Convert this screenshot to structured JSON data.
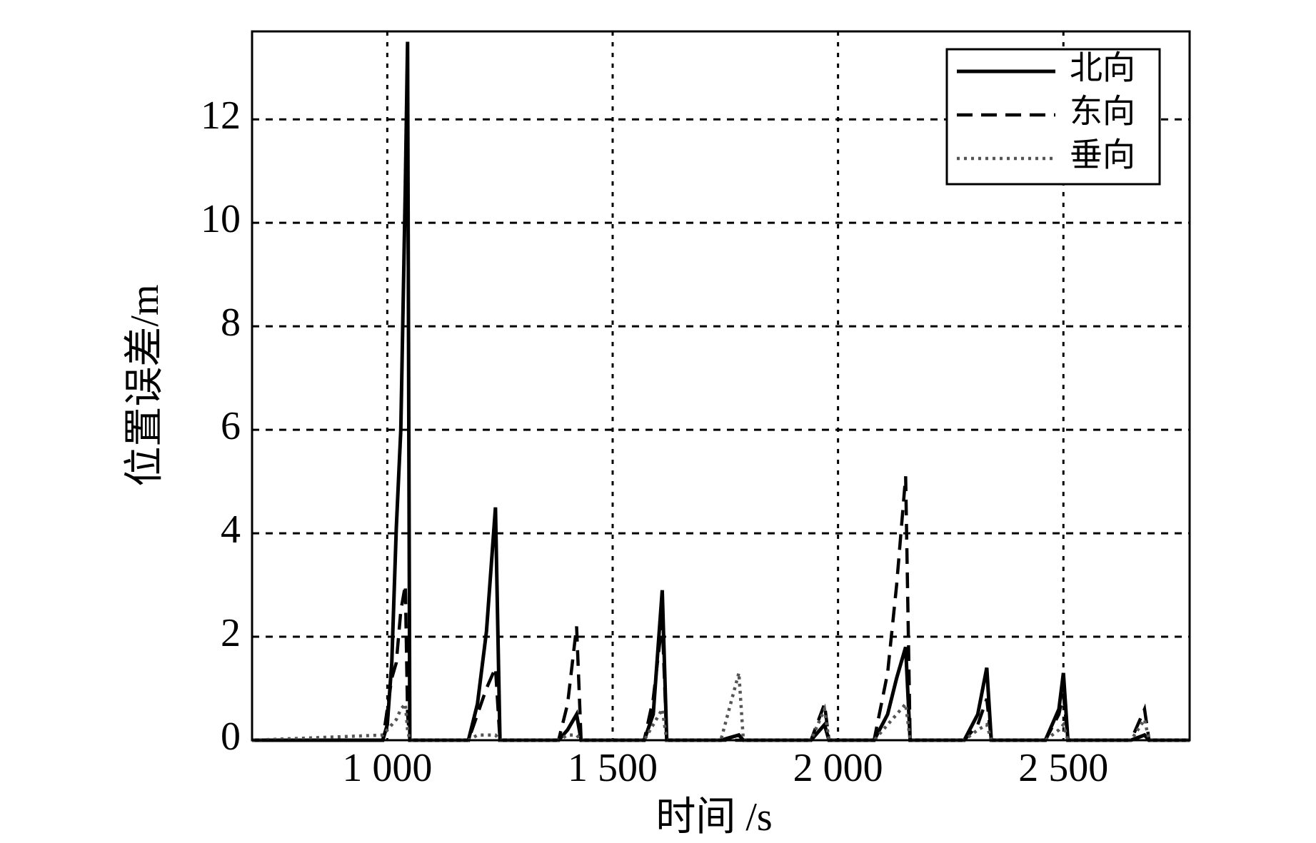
{
  "chart_data": {
    "type": "line",
    "xlabel": "时间 /s",
    "ylabel": "位置误差/m",
    "x": [
      700,
      990,
      1000,
      1010,
      1020,
      1030,
      1040,
      1045,
      1050,
      1180,
      1200,
      1220,
      1240,
      1250,
      1380,
      1400,
      1420,
      1430,
      1570,
      1590,
      1610,
      1620,
      1740,
      1780,
      1790,
      1940,
      1970,
      1980,
      2080,
      2110,
      2130,
      2150,
      2160,
      2280,
      2310,
      2330,
      2340,
      2460,
      2490,
      2500,
      2510,
      2650,
      2680,
      2690,
      2780
    ],
    "series": [
      {
        "name": "北向",
        "color": "#000000",
        "dash": "solid",
        "values": [
          0,
          0,
          0.3,
          1.5,
          4.1,
          6,
          10.7,
          13.5,
          0,
          0,
          0.7,
          2.1,
          4.5,
          0,
          0,
          0.2,
          0.5,
          0,
          0,
          0.5,
          2.9,
          0,
          0,
          0.1,
          0,
          0,
          0.3,
          0,
          0,
          0.5,
          1.2,
          1.8,
          0,
          0,
          0.5,
          1.4,
          0,
          0,
          0.6,
          1.3,
          0,
          0,
          0.1,
          0,
          0
        ]
      },
      {
        "name": "东向",
        "color": "#000000",
        "dash": "dashed",
        "values": [
          0,
          0,
          0.6,
          1.2,
          1.5,
          2.5,
          3.0,
          0.5,
          0,
          0,
          0.5,
          1.0,
          1.4,
          0,
          0,
          0.7,
          2.2,
          0,
          0,
          0.8,
          2.3,
          0,
          0,
          0,
          0,
          0,
          0.7,
          0,
          0,
          1.3,
          3.0,
          5.1,
          0,
          0,
          0.3,
          0.8,
          0,
          0,
          0.5,
          0.9,
          0,
          0,
          0.6,
          0,
          0
        ]
      },
      {
        "name": "垂向",
        "color": "#555555",
        "dash": "dotted",
        "values": [
          0,
          0.1,
          0.2,
          0.3,
          0.4,
          0.6,
          0.7,
          0.2,
          0,
          0,
          0.1,
          0.1,
          0.1,
          0,
          0,
          0.1,
          0.1,
          0,
          0,
          0.3,
          0.6,
          0,
          0,
          1.3,
          0,
          0,
          0.6,
          0,
          0,
          0.3,
          0.5,
          0.7,
          0,
          0,
          0.2,
          0.3,
          0,
          0,
          0.2,
          0.3,
          0,
          0,
          0.4,
          0,
          0
        ]
      }
    ],
    "xlim": [
      700,
      2780
    ],
    "ylim": [
      0,
      13.7
    ],
    "xticks": [
      {
        "value": 1000,
        "label": "1 000"
      },
      {
        "value": 1500,
        "label": "1 500"
      },
      {
        "value": 2000,
        "label": "2 000"
      },
      {
        "value": 2500,
        "label": "2 500"
      }
    ],
    "yticks": [
      0,
      2,
      4,
      6,
      8,
      10,
      12
    ],
    "grid": true,
    "legend": "upper right"
  }
}
